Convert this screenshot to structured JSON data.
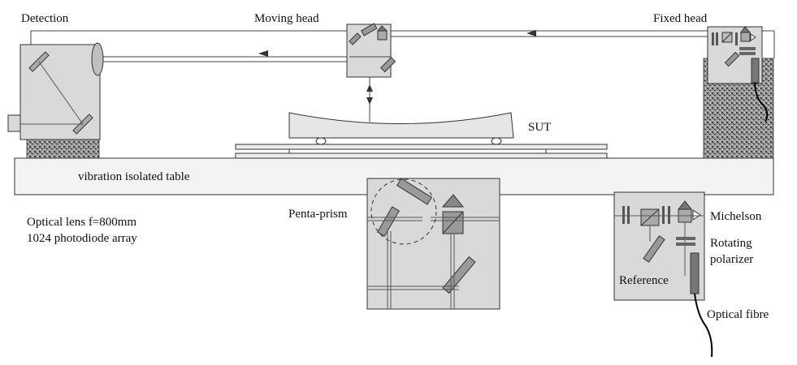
{
  "labels": {
    "detection": "Detection",
    "moving_head": "Moving head",
    "fixed_head": "Fixed head",
    "sut": "SUT",
    "table": "vibration isolated table",
    "lens": "Optical lens f=800mm",
    "array": "1024 photodiode array",
    "penta_prism": "Penta-prism",
    "michelson": "Michelson",
    "rotating": "Rotating",
    "polarizer": "polarizer",
    "reference": "Reference",
    "fibre": "Optical fibre"
  },
  "colors": {
    "box_fill": "#d9d9d9",
    "box_stroke": "#333333",
    "beam": "#555555",
    "granite_dark": "#4a4a4a",
    "granite_light": "#bdbdbd",
    "table_fill": "#f2f2f2"
  }
}
